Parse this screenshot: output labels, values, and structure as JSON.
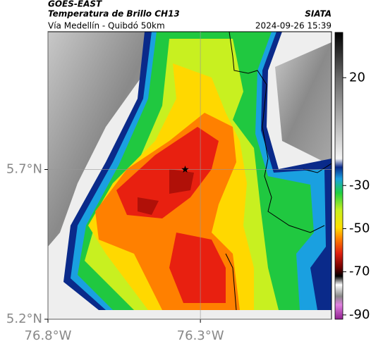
{
  "chart_data": {
    "type": "map",
    "title": "GOES-EAST",
    "subtitle": "Temperatura de Brillo CH13",
    "source": "SIATA",
    "region": "Vía Medellín - Quibdó 50km",
    "timestamp": "2024-09-26 15:39",
    "xlim": [
      -76.8,
      -75.87
    ],
    "ylim": [
      5.2,
      6.16
    ],
    "xticks": [
      {
        "value": -76.8,
        "label": "76.8°W"
      },
      {
        "value": -76.3,
        "label": "76.3°W"
      }
    ],
    "yticks": [
      {
        "value": 5.2,
        "label": "5.2°N"
      },
      {
        "value": 5.7,
        "label": "5.7°N"
      }
    ],
    "grid": true,
    "colorbar": {
      "lim": [
        -92,
        41
      ],
      "ticks": [
        20,
        -30,
        -50,
        -70,
        -90
      ]
    },
    "marker": {
      "x": -76.35,
      "y": 5.7
    }
  }
}
